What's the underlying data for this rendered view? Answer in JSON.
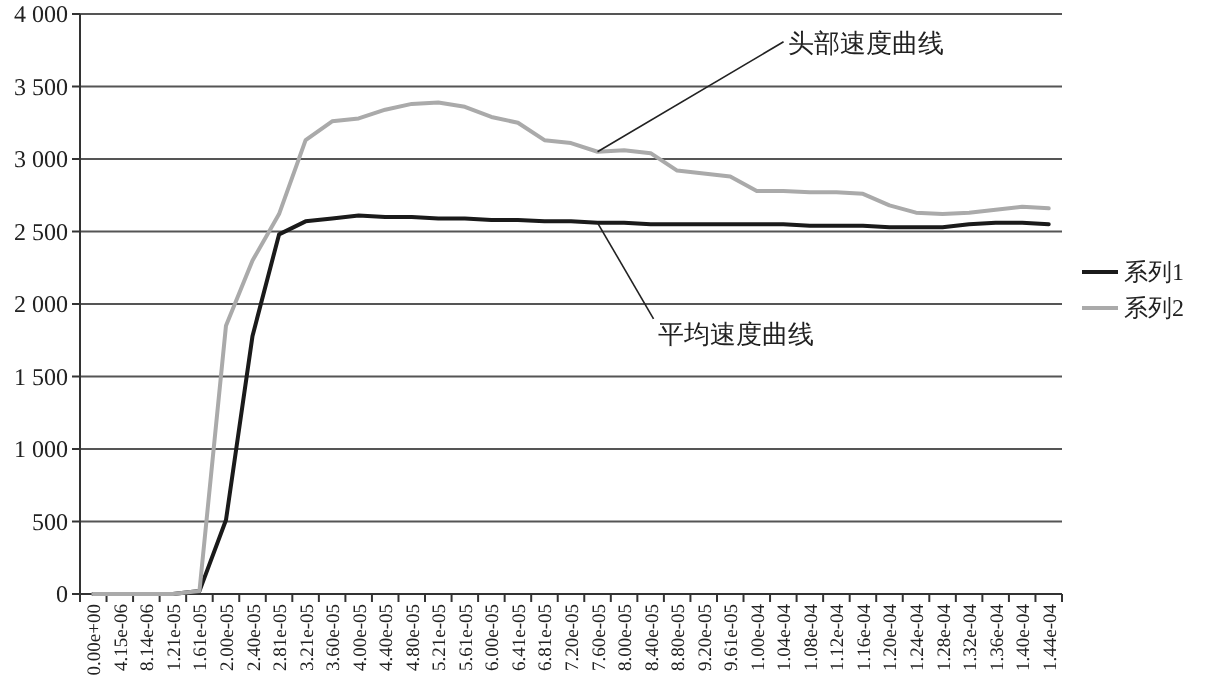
{
  "chart_data": {
    "type": "line",
    "categories": [
      "0.00e+00",
      "4.15e-06",
      "8.14e-06",
      "1.21e-05",
      "1.61e-05",
      "2.00e-05",
      "2.40e-05",
      "2.81e-05",
      "3.21e-05",
      "3.60e-05",
      "4.00e-05",
      "4.40e-05",
      "4.80e-05",
      "5.21e-05",
      "5.61e-05",
      "6.00e-05",
      "6.41e-05",
      "6.81e-05",
      "7.20e-05",
      "7.60e-05",
      "8.00e-05",
      "8.40e-05",
      "8.80e-05",
      "9.20e-05",
      "9.61e-05",
      "1.00e-04",
      "1.04e-04",
      "1.08e-04",
      "1.12e-04",
      "1.16e-04",
      "1.20e-04",
      "1.24e-04",
      "1.28e-04",
      "1.32e-04",
      "1.36e-04",
      "1.40e-04",
      "1.44e-04"
    ],
    "series": [
      {
        "name": "系列1",
        "color": "#1a1a1a",
        "values": [
          0,
          0,
          0,
          0,
          20,
          510,
          1780,
          2480,
          2570,
          2590,
          2610,
          2600,
          2600,
          2590,
          2590,
          2580,
          2580,
          2570,
          2570,
          2560,
          2560,
          2550,
          2550,
          2550,
          2550,
          2550,
          2550,
          2540,
          2540,
          2540,
          2530,
          2530,
          2530,
          2550,
          2560,
          2560,
          2550
        ]
      },
      {
        "name": "系列2",
        "color": "#aaaaaa",
        "values": [
          0,
          0,
          0,
          0,
          20,
          1850,
          2300,
          2620,
          3130,
          3260,
          3280,
          3340,
          3380,
          3390,
          3360,
          3290,
          3250,
          3130,
          3110,
          3050,
          3060,
          3040,
          2920,
          2900,
          2880,
          2780,
          2780,
          2770,
          2770,
          2760,
          2680,
          2630,
          2620,
          2630,
          2650,
          2670,
          2660
        ]
      }
    ],
    "ylim": [
      0,
      4000
    ],
    "yticks": [
      0,
      500,
      {
        "value": 1000,
        "label": "1 000"
      },
      {
        "value": 1500,
        "label": "1 500"
      },
      {
        "value": 2000,
        "label": "2 000"
      },
      {
        "value": 2500,
        "label": "2 500"
      },
      {
        "value": 3000,
        "label": "3 000"
      },
      {
        "value": 3500,
        "label": "3 500"
      },
      {
        "value": 4000,
        "label": "4 000"
      }
    ],
    "grid": "y",
    "legend": "right",
    "marker": "none",
    "line_style": "solid",
    "annotations": [
      {
        "text": "头部速度曲线",
        "x": "7.60e-05",
        "y": 3050
      },
      {
        "text": "平均速度曲线",
        "x": "7.60e-05",
        "y": 2560
      }
    ]
  }
}
